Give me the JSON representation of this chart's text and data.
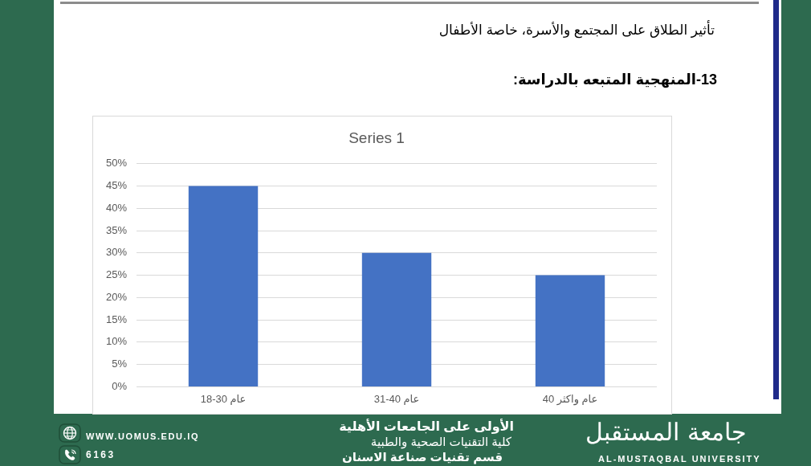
{
  "chart_data": {
    "type": "bar",
    "title": "Series 1",
    "categories": [
      "18-30 عام",
      "31-40 عام",
      "40 عام واكثر"
    ],
    "values": [
      45,
      30,
      25
    ],
    "color": "#4472c4",
    "ylim": [
      0,
      50
    ],
    "yticks": [
      {
        "value": 0,
        "label": "0%"
      },
      {
        "value": 5,
        "label": "5%"
      },
      {
        "value": 10,
        "label": "10%"
      },
      {
        "value": 15,
        "label": "15%"
      },
      {
        "value": 20,
        "label": "20%"
      },
      {
        "value": 25,
        "label": "25%"
      },
      {
        "value": 30,
        "label": "30%"
      },
      {
        "value": 35,
        "label": "35%"
      },
      {
        "value": 40,
        "label": "40%"
      },
      {
        "value": 45,
        "label": "45%"
      },
      {
        "value": 50,
        "label": "50%"
      }
    ],
    "grid": "y",
    "annotations": [
      "تأثير الطلاق على المجتمع والأسرة، خاصة الأطفال",
      "13-المنهجية المتبعه بالدراسة:",
      "WWW.UOMUS.EDU.IQ",
      "6163",
      "الأولى على الجامعات الأهلية",
      "كلية التقنيات الصحية والطبية",
      "قسم تقنيات صناعة الاسنان",
      "جامعة المستقبل",
      "AL-MUSTAQBAL UNIVERSITY"
    ]
  }
}
